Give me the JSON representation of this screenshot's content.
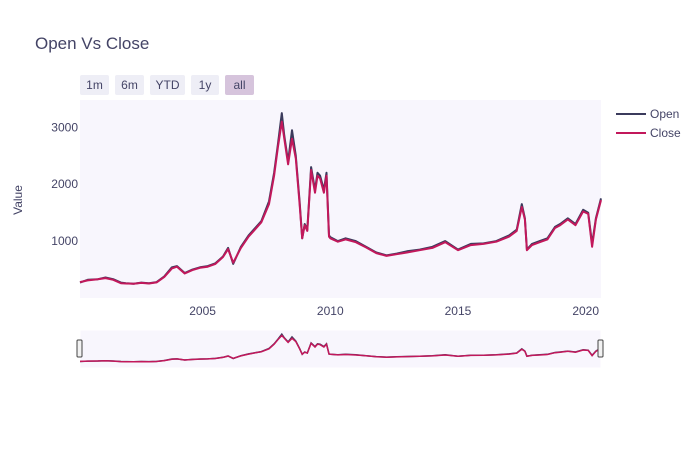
{
  "chart": {
    "title": "Open Vs Close",
    "range_buttons": [
      "1m",
      "6m",
      "YTD",
      "1y",
      "all"
    ],
    "active_button": "all",
    "legend_position": "top-right",
    "background_color": "#f8f6fd"
  },
  "chart_data": {
    "type": "line",
    "title": "Open Vs Close",
    "xlabel": "",
    "ylabel": "Value",
    "xlim": [
      2000.2,
      2020.6
    ],
    "ylim": [
      0,
      3480
    ],
    "x_ticks": [
      2005,
      2010,
      2015,
      2020
    ],
    "y_ticks": [
      1000,
      2000,
      3000
    ],
    "grid": false,
    "range_slider": true,
    "series": [
      {
        "name": "Open",
        "color": "#3b3b5c",
        "x": [
          2000.2,
          2000.5,
          2000.9,
          2001.2,
          2001.5,
          2001.8,
          2002.0,
          2002.3,
          2002.6,
          2002.9,
          2003.2,
          2003.5,
          2003.8,
          2004.0,
          2004.3,
          2004.6,
          2004.9,
          2005.2,
          2005.5,
          2005.8,
          2006.0,
          2006.2,
          2006.5,
          2006.8,
          2007.0,
          2007.3,
          2007.6,
          2007.8,
          2007.95,
          2008.1,
          2008.2,
          2008.35,
          2008.5,
          2008.65,
          2008.8,
          2008.9,
          2009.0,
          2009.1,
          2009.25,
          2009.4,
          2009.5,
          2009.6,
          2009.75,
          2009.85,
          2009.95,
          2010.0,
          2010.3,
          2010.6,
          2011.0,
          2011.4,
          2011.8,
          2012.2,
          2012.6,
          2013.0,
          2013.5,
          2014.0,
          2014.5,
          2015.0,
          2015.5,
          2016.0,
          2016.5,
          2017.0,
          2017.3,
          2017.5,
          2017.62,
          2017.7,
          2017.9,
          2018.2,
          2018.5,
          2018.8,
          2019.0,
          2019.3,
          2019.6,
          2019.9,
          2020.1,
          2020.25,
          2020.4,
          2020.6
        ],
        "values": [
          270,
          320,
          330,
          360,
          330,
          270,
          260,
          250,
          270,
          260,
          280,
          380,
          540,
          560,
          440,
          500,
          540,
          560,
          610,
          730,
          880,
          600,
          900,
          1100,
          1200,
          1350,
          1700,
          2200,
          2700,
          3250,
          2850,
          2400,
          2950,
          2500,
          1700,
          1050,
          1300,
          1200,
          2300,
          1900,
          2200,
          2150,
          1900,
          2200,
          1100,
          1070,
          1000,
          1050,
          1000,
          900,
          800,
          750,
          780,
          820,
          850,
          900,
          1000,
          850,
          950,
          960,
          1000,
          1100,
          1200,
          1650,
          1400,
          850,
          950,
          1000,
          1050,
          1250,
          1300,
          1400,
          1300,
          1550,
          1500,
          950,
          1400,
          1750
        ]
      },
      {
        "name": "Close",
        "color": "#c2185b",
        "x": [
          2000.2,
          2000.5,
          2000.9,
          2001.2,
          2001.5,
          2001.8,
          2002.0,
          2002.3,
          2002.6,
          2002.9,
          2003.2,
          2003.5,
          2003.8,
          2004.0,
          2004.3,
          2004.6,
          2004.9,
          2005.2,
          2005.5,
          2005.8,
          2006.0,
          2006.2,
          2006.5,
          2006.8,
          2007.0,
          2007.3,
          2007.6,
          2007.8,
          2007.95,
          2008.1,
          2008.2,
          2008.35,
          2008.5,
          2008.65,
          2008.8,
          2008.9,
          2009.0,
          2009.1,
          2009.25,
          2009.4,
          2009.5,
          2009.6,
          2009.75,
          2009.85,
          2009.95,
          2010.0,
          2010.3,
          2010.6,
          2011.0,
          2011.4,
          2011.8,
          2012.2,
          2012.6,
          2013.0,
          2013.5,
          2014.0,
          2014.5,
          2015.0,
          2015.5,
          2016.0,
          2016.5,
          2017.0,
          2017.3,
          2017.5,
          2017.62,
          2017.7,
          2017.9,
          2018.2,
          2018.5,
          2018.8,
          2019.0,
          2019.3,
          2019.6,
          2019.9,
          2020.1,
          2020.25,
          2020.4,
          2020.6
        ],
        "values": [
          280,
          310,
          330,
          350,
          320,
          260,
          255,
          250,
          265,
          255,
          275,
          370,
          520,
          550,
          430,
          490,
          530,
          550,
          600,
          720,
          860,
          620,
          880,
          1080,
          1180,
          1330,
          1650,
          2150,
          2650,
          3100,
          2800,
          2350,
          2800,
          2450,
          1650,
          1050,
          1280,
          1180,
          2250,
          1850,
          2150,
          2100,
          1850,
          2150,
          1080,
          1050,
          990,
          1030,
          980,
          890,
          790,
          740,
          770,
          800,
          840,
          880,
          980,
          840,
          930,
          950,
          990,
          1080,
          1180,
          1600,
          1380,
          840,
          930,
          980,
          1030,
          1230,
          1280,
          1380,
          1280,
          1520,
          1480,
          900,
          1380,
          1720
        ]
      }
    ]
  }
}
